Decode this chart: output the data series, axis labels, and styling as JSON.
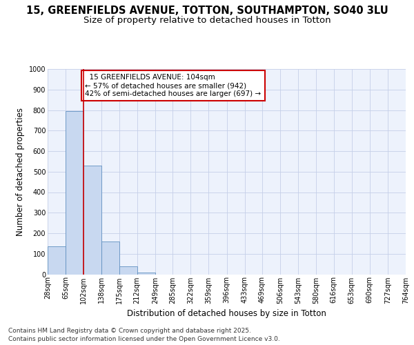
{
  "title1": "15, GREENFIELDS AVENUE, TOTTON, SOUTHAMPTON, SO40 3LU",
  "title2": "Size of property relative to detached houses in Totton",
  "xlabel": "Distribution of detached houses by size in Totton",
  "ylabel": "Number of detached properties",
  "footer1": "Contains HM Land Registry data © Crown copyright and database right 2025.",
  "footer2": "Contains public sector information licensed under the Open Government Licence v3.0.",
  "annotation_line1": "15 GREENFIELDS AVENUE: 104sqm",
  "annotation_line2": "← 57% of detached houses are smaller (942)",
  "annotation_line3": "42% of semi-detached houses are larger (697) →",
  "bar_edges": [
    28,
    65,
    102,
    138,
    175,
    212,
    249,
    285,
    322,
    359,
    396,
    433,
    469,
    506,
    543,
    580,
    616,
    653,
    690,
    727,
    764
  ],
  "bar_heights": [
    135,
    795,
    530,
    160,
    40,
    10,
    0,
    0,
    0,
    0,
    0,
    0,
    0,
    0,
    0,
    0,
    0,
    0,
    0,
    0
  ],
  "bar_color": "#c8d8f0",
  "bar_edge_color": "#6090c0",
  "property_line_x": 102,
  "property_line_color": "#cc0000",
  "ylim": [
    0,
    1000
  ],
  "yticks": [
    0,
    100,
    200,
    300,
    400,
    500,
    600,
    700,
    800,
    900,
    1000
  ],
  "bg_color": "#ffffff",
  "plot_bg_color": "#edf2fc",
  "grid_color": "#c5cfe8",
  "title_fontsize": 10.5,
  "subtitle_fontsize": 9.5,
  "tick_fontsize": 7,
  "label_fontsize": 8.5,
  "footer_fontsize": 6.5,
  "ann_fontsize": 7.5
}
